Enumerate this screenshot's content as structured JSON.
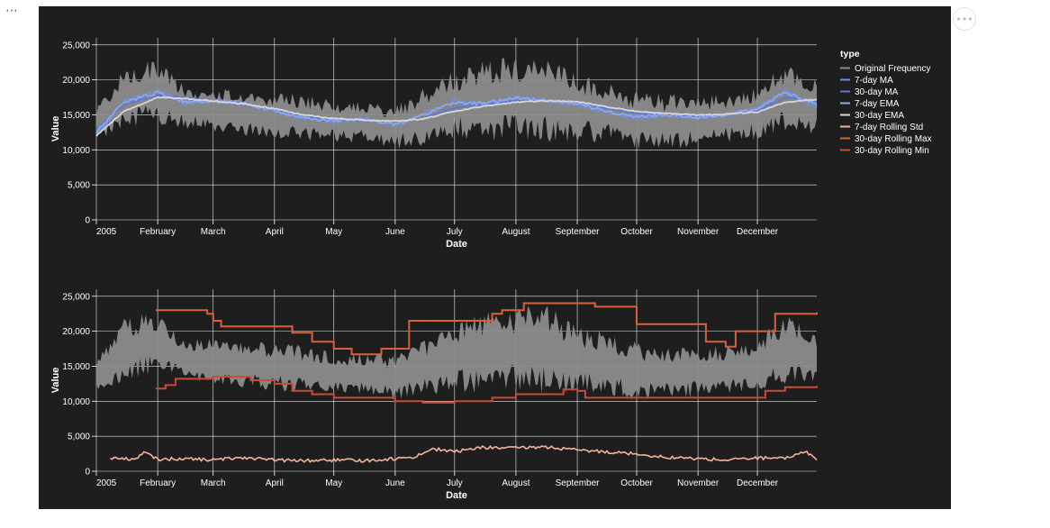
{
  "ui": {
    "overflow_icon": "⋯",
    "menu_icon": "•••"
  },
  "colors": {
    "panel_bg": "#1e1e1e",
    "grid": "#ffffff",
    "axis_text": "#ffffff"
  },
  "chart_data": [
    {
      "type": "line",
      "id": "top",
      "title": "",
      "xlabel": "Date",
      "ylabel": "Value",
      "x_ticks": [
        "2005",
        "February",
        "March",
        "April",
        "May",
        "June",
        "July",
        "August",
        "September",
        "October",
        "November",
        "December"
      ],
      "x_tick_dates": [
        "2005-01-01",
        "2005-02-01",
        "2005-03-01",
        "2005-04-01",
        "2005-05-01",
        "2005-06-01",
        "2005-07-01",
        "2005-08-01",
        "2005-09-01",
        "2005-10-01",
        "2005-11-01",
        "2005-12-01"
      ],
      "xlim": [
        "2005-01-01",
        "2005-12-31"
      ],
      "ylim": [
        0,
        26000
      ],
      "y_ticks": [
        "0",
        "5,000",
        "10,000",
        "15,000",
        "20,000",
        "25,000"
      ],
      "y_tick_values": [
        0,
        5000,
        10000,
        15000,
        20000,
        25000
      ],
      "grid": true,
      "legend_placement": "right",
      "series": [
        {
          "name": "Original Frequency",
          "color": "#8c8c8c",
          "style": "band",
          "dates": [
            "2005-01-01",
            "2005-01-15",
            "2005-02-01",
            "2005-02-15",
            "2005-03-01",
            "2005-03-15",
            "2005-04-01",
            "2005-04-15",
            "2005-05-01",
            "2005-05-15",
            "2005-06-01",
            "2005-06-15",
            "2005-07-01",
            "2005-07-15",
            "2005-08-01",
            "2005-08-15",
            "2005-09-01",
            "2005-09-15",
            "2005-10-01",
            "2005-10-15",
            "2005-11-01",
            "2005-11-15",
            "2005-12-01",
            "2005-12-15",
            "2005-12-31"
          ],
          "high": [
            16000,
            22000,
            23000,
            19000,
            19000,
            18500,
            18500,
            18000,
            17000,
            17000,
            16500,
            19000,
            21500,
            23000,
            23500,
            24000,
            21000,
            20000,
            18500,
            18000,
            18000,
            18000,
            19000,
            22500,
            20000
          ],
          "low": [
            11000,
            13000,
            13500,
            13000,
            12500,
            12000,
            11500,
            11000,
            11000,
            11000,
            10000,
            10500,
            11500,
            11000,
            11500,
            11000,
            11000,
            11000,
            10000,
            10000,
            10500,
            11000,
            11500,
            12500,
            12000
          ]
        },
        {
          "name": "7-day MA",
          "color": "#6f8fe8",
          "dates": [
            "2005-01-01",
            "2005-01-15",
            "2005-02-01",
            "2005-02-15",
            "2005-03-01",
            "2005-03-15",
            "2005-04-01",
            "2005-04-15",
            "2005-05-01",
            "2005-05-15",
            "2005-06-01",
            "2005-06-15",
            "2005-07-01",
            "2005-07-15",
            "2005-08-01",
            "2005-08-15",
            "2005-09-01",
            "2005-09-15",
            "2005-10-01",
            "2005-10-15",
            "2005-11-01",
            "2005-11-15",
            "2005-12-01",
            "2005-12-15",
            "2005-12-31"
          ],
          "values": [
            12000,
            17000,
            18500,
            16500,
            17000,
            16800,
            15500,
            14500,
            14000,
            14500,
            13500,
            15000,
            17000,
            16500,
            17500,
            17000,
            16500,
            15500,
            14500,
            15000,
            14500,
            15000,
            16000,
            18500,
            16000
          ]
        },
        {
          "name": "30-day MA",
          "color": "#5a78d8",
          "dates": [
            "2005-01-01",
            "2005-01-15",
            "2005-02-01",
            "2005-02-15",
            "2005-03-01",
            "2005-03-15",
            "2005-04-01",
            "2005-04-15",
            "2005-05-01",
            "2005-05-15",
            "2005-06-01",
            "2005-06-15",
            "2005-07-01",
            "2005-07-15",
            "2005-08-01",
            "2005-08-15",
            "2005-09-01",
            "2005-09-15",
            "2005-10-01",
            "2005-10-15",
            "2005-11-01",
            "2005-11-15",
            "2005-12-01",
            "2005-12-15",
            "2005-12-31"
          ],
          "values": [
            13000,
            16500,
            17800,
            17500,
            17000,
            16500,
            15800,
            14800,
            14200,
            14200,
            14000,
            14500,
            16000,
            16500,
            17000,
            17000,
            16800,
            16000,
            15200,
            15000,
            14800,
            15000,
            15500,
            17500,
            17000
          ]
        },
        {
          "name": "7-day EMA",
          "color": "#8ea8ec",
          "dates": [
            "2005-01-01",
            "2005-01-15",
            "2005-02-01",
            "2005-02-15",
            "2005-03-01",
            "2005-03-15",
            "2005-04-01",
            "2005-04-15",
            "2005-05-01",
            "2005-05-15",
            "2005-06-01",
            "2005-06-15",
            "2005-07-01",
            "2005-07-15",
            "2005-08-01",
            "2005-08-15",
            "2005-09-01",
            "2005-09-15",
            "2005-10-01",
            "2005-10-15",
            "2005-11-01",
            "2005-11-15",
            "2005-12-01",
            "2005-12-15",
            "2005-12-31"
          ],
          "values": [
            12500,
            16800,
            18200,
            16800,
            17000,
            16700,
            15600,
            14600,
            14100,
            14400,
            13600,
            15000,
            16800,
            16600,
            17400,
            17100,
            16600,
            15600,
            14700,
            15000,
            14600,
            15000,
            16000,
            18200,
            16500
          ]
        },
        {
          "name": "30-day EMA",
          "color": "#d8d8d8",
          "dates": [
            "2005-01-01",
            "2005-01-15",
            "2005-02-01",
            "2005-02-15",
            "2005-03-01",
            "2005-03-15",
            "2005-04-01",
            "2005-04-15",
            "2005-05-01",
            "2005-05-15",
            "2005-06-01",
            "2005-06-15",
            "2005-07-01",
            "2005-07-15",
            "2005-08-01",
            "2005-08-15",
            "2005-09-01",
            "2005-09-15",
            "2005-10-01",
            "2005-10-15",
            "2005-11-01",
            "2005-11-15",
            "2005-12-01",
            "2005-12-15",
            "2005-12-31"
          ],
          "values": [
            12000,
            15500,
            17500,
            17300,
            17000,
            16600,
            15900,
            15000,
            14500,
            14300,
            14100,
            14400,
            15500,
            16200,
            16800,
            17000,
            16900,
            16200,
            15500,
            15200,
            15000,
            15100,
            15400,
            16800,
            17200
          ]
        }
      ]
    },
    {
      "type": "line",
      "id": "bottom",
      "title": "",
      "xlabel": "Date",
      "ylabel": "Value",
      "x_ticks": [
        "2005",
        "February",
        "March",
        "April",
        "May",
        "June",
        "July",
        "August",
        "September",
        "October",
        "November",
        "December"
      ],
      "x_tick_dates": [
        "2005-01-01",
        "2005-02-01",
        "2005-03-01",
        "2005-04-01",
        "2005-05-01",
        "2005-06-01",
        "2005-07-01",
        "2005-08-01",
        "2005-09-01",
        "2005-10-01",
        "2005-11-01",
        "2005-12-01"
      ],
      "xlim": [
        "2005-01-01",
        "2005-12-31"
      ],
      "ylim": [
        0,
        26000
      ],
      "y_ticks": [
        "0",
        "5,000",
        "10,000",
        "15,000",
        "20,000",
        "25,000"
      ],
      "y_tick_values": [
        0,
        5000,
        10000,
        15000,
        20000,
        25000
      ],
      "grid": true,
      "series": [
        {
          "name": "Original Frequency",
          "color": "#8c8c8c",
          "style": "band",
          "dates": [
            "2005-01-01",
            "2005-01-15",
            "2005-02-01",
            "2005-02-15",
            "2005-03-01",
            "2005-03-15",
            "2005-04-01",
            "2005-04-15",
            "2005-05-01",
            "2005-05-15",
            "2005-06-01",
            "2005-06-15",
            "2005-07-01",
            "2005-07-15",
            "2005-08-01",
            "2005-08-15",
            "2005-09-01",
            "2005-09-15",
            "2005-10-01",
            "2005-10-15",
            "2005-11-01",
            "2005-11-15",
            "2005-12-01",
            "2005-12-15",
            "2005-12-31"
          ],
          "high": [
            16000,
            22000,
            23000,
            19000,
            19000,
            18500,
            18500,
            18000,
            17000,
            17000,
            16500,
            19000,
            21500,
            23000,
            23500,
            24000,
            21000,
            20000,
            18500,
            18000,
            18000,
            18000,
            19000,
            22500,
            20000
          ],
          "low": [
            11000,
            13000,
            13500,
            13000,
            12500,
            12000,
            11500,
            11000,
            11000,
            11000,
            10000,
            10500,
            11500,
            11000,
            11500,
            11000,
            11000,
            11000,
            10000,
            10000,
            10500,
            11000,
            11500,
            12500,
            12000
          ]
        },
        {
          "name": "30-day Rolling Max",
          "color": "#d9603b",
          "style": "step",
          "dates": [
            "2005-01-31",
            "2005-02-26",
            "2005-03-01",
            "2005-03-05",
            "2005-04-01",
            "2005-04-10",
            "2005-04-20",
            "2005-05-01",
            "2005-05-10",
            "2005-05-25",
            "2005-06-05",
            "2005-06-08",
            "2005-06-25",
            "2005-07-20",
            "2005-07-25",
            "2005-08-05",
            "2005-08-28",
            "2005-09-10",
            "2005-10-01",
            "2005-10-25",
            "2005-11-05",
            "2005-11-15",
            "2005-11-20",
            "2005-12-10",
            "2005-12-31"
          ],
          "values": [
            23000,
            22500,
            21500,
            20700,
            20700,
            19800,
            18500,
            17500,
            16700,
            17500,
            17500,
            21500,
            21500,
            22500,
            23000,
            24000,
            24000,
            23500,
            21000,
            21000,
            18500,
            17800,
            20000,
            22500,
            22700
          ]
        },
        {
          "name": "30-day Rolling Min",
          "color": "#c94a3a",
          "style": "step",
          "dates": [
            "2005-01-31",
            "2005-02-05",
            "2005-02-10",
            "2005-03-01",
            "2005-03-20",
            "2005-04-01",
            "2005-04-10",
            "2005-04-20",
            "2005-05-01",
            "2005-06-01",
            "2005-06-15",
            "2005-07-01",
            "2005-07-20",
            "2005-08-01",
            "2005-08-25",
            "2005-09-01",
            "2005-09-05",
            "2005-10-01",
            "2005-11-01",
            "2005-12-01",
            "2005-12-05",
            "2005-12-15",
            "2005-12-31"
          ],
          "values": [
            11800,
            12300,
            13200,
            13500,
            13000,
            12500,
            11500,
            11000,
            10500,
            10000,
            9800,
            10000,
            10500,
            11000,
            11700,
            11500,
            10500,
            10500,
            10500,
            10500,
            11500,
            12000,
            12200
          ]
        },
        {
          "name": "7-day Rolling Std",
          "color": "#f4b49c",
          "dates": [
            "2005-01-08",
            "2005-01-20",
            "2005-01-25",
            "2005-02-01",
            "2005-02-15",
            "2005-03-01",
            "2005-03-15",
            "2005-04-01",
            "2005-04-15",
            "2005-05-01",
            "2005-05-15",
            "2005-06-01",
            "2005-06-10",
            "2005-06-20",
            "2005-07-01",
            "2005-07-15",
            "2005-08-01",
            "2005-08-15",
            "2005-09-01",
            "2005-09-15",
            "2005-10-01",
            "2005-10-15",
            "2005-11-01",
            "2005-11-15",
            "2005-12-01",
            "2005-12-15",
            "2005-12-25",
            "2005-12-31"
          ],
          "values": [
            1900,
            1700,
            2700,
            1700,
            1800,
            1600,
            2000,
            1600,
            1500,
            1600,
            1500,
            1800,
            2000,
            3200,
            2800,
            3400,
            3300,
            3500,
            3000,
            2800,
            2500,
            2000,
            1800,
            1600,
            1900,
            1800,
            2900,
            1700
          ]
        }
      ]
    }
  ],
  "legend": {
    "title": "type",
    "items": [
      {
        "label": "Original Frequency",
        "color": "#8c8c8c"
      },
      {
        "label": "7-day MA",
        "color": "#6f8fe8"
      },
      {
        "label": "30-day MA",
        "color": "#5a78d8"
      },
      {
        "label": "7-day EMA",
        "color": "#8ea8ec"
      },
      {
        "label": "30-day EMA",
        "color": "#d8d8d8"
      },
      {
        "label": "7-day Rolling Std",
        "color": "#f4b49c"
      },
      {
        "label": "30-day Rolling Max",
        "color": "#d9603b"
      },
      {
        "label": "30-day Rolling Min",
        "color": "#c94a3a"
      }
    ]
  }
}
